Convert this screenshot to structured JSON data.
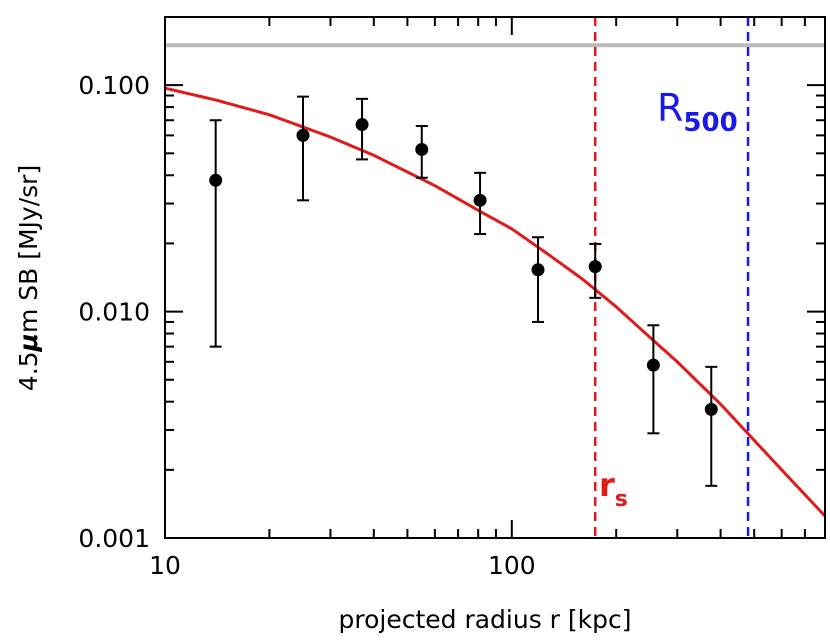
{
  "chart_data": {
    "type": "scatter",
    "title": "",
    "xlabel": "projected radius r [kpc]",
    "ylabel_prefix": "4.5",
    "ylabel_mu": "μ",
    "ylabel_suffix": "m SB [MJy/sr]",
    "xscale": "log",
    "yscale": "log",
    "xlim": [
      10,
      800
    ],
    "ylim": [
      0.001,
      0.2
    ],
    "xticks": [
      {
        "value": 10,
        "label": "10"
      },
      {
        "value": 100,
        "label": "100"
      }
    ],
    "yticks": [
      {
        "value": 0.001,
        "label": "0.001"
      },
      {
        "value": 0.01,
        "label": "0.010"
      },
      {
        "value": 0.1,
        "label": "0.100"
      }
    ],
    "points": [
      {
        "x": 14,
        "y": 0.038,
        "ylo": 0.007,
        "yhi": 0.07
      },
      {
        "x": 25,
        "y": 0.06,
        "ylo": 0.031,
        "yhi": 0.089
      },
      {
        "x": 37,
        "y": 0.067,
        "ylo": 0.047,
        "yhi": 0.087
      },
      {
        "x": 55,
        "y": 0.052,
        "ylo": 0.039,
        "yhi": 0.066
      },
      {
        "x": 81,
        "y": 0.031,
        "ylo": 0.022,
        "yhi": 0.041
      },
      {
        "x": 119,
        "y": 0.0153,
        "ylo": 0.009,
        "yhi": 0.0213
      },
      {
        "x": 174,
        "y": 0.0158,
        "ylo": 0.0115,
        "yhi": 0.0199
      },
      {
        "x": 256,
        "y": 0.0058,
        "ylo": 0.0029,
        "yhi": 0.0087
      },
      {
        "x": 376,
        "y": 0.0037,
        "ylo": 0.0017,
        "yhi": 0.0057
      }
    ],
    "model_curve": {
      "color": "#e01b1b",
      "x": [
        10,
        14,
        20,
        30,
        40,
        60,
        80,
        100,
        130,
        160,
        200,
        250,
        300,
        400,
        500,
        600,
        800
      ],
      "y": [
        0.097,
        0.086,
        0.074,
        0.059,
        0.049,
        0.036,
        0.028,
        0.0232,
        0.0175,
        0.0139,
        0.0105,
        0.0077,
        0.006,
        0.0039,
        0.0027,
        0.002,
        0.00125
      ]
    },
    "hline": {
      "y": 0.15,
      "color": "#bbbbbb"
    },
    "vlines": [
      {
        "x": 174,
        "color": "#e01b1b",
        "label_main": "r",
        "label_sub": "s"
      },
      {
        "x": 480,
        "color": "#1a1ae6",
        "label_main": "R",
        "label_sub": "500"
      }
    ],
    "point_color": "#000000",
    "grid": false,
    "legend": "none"
  }
}
